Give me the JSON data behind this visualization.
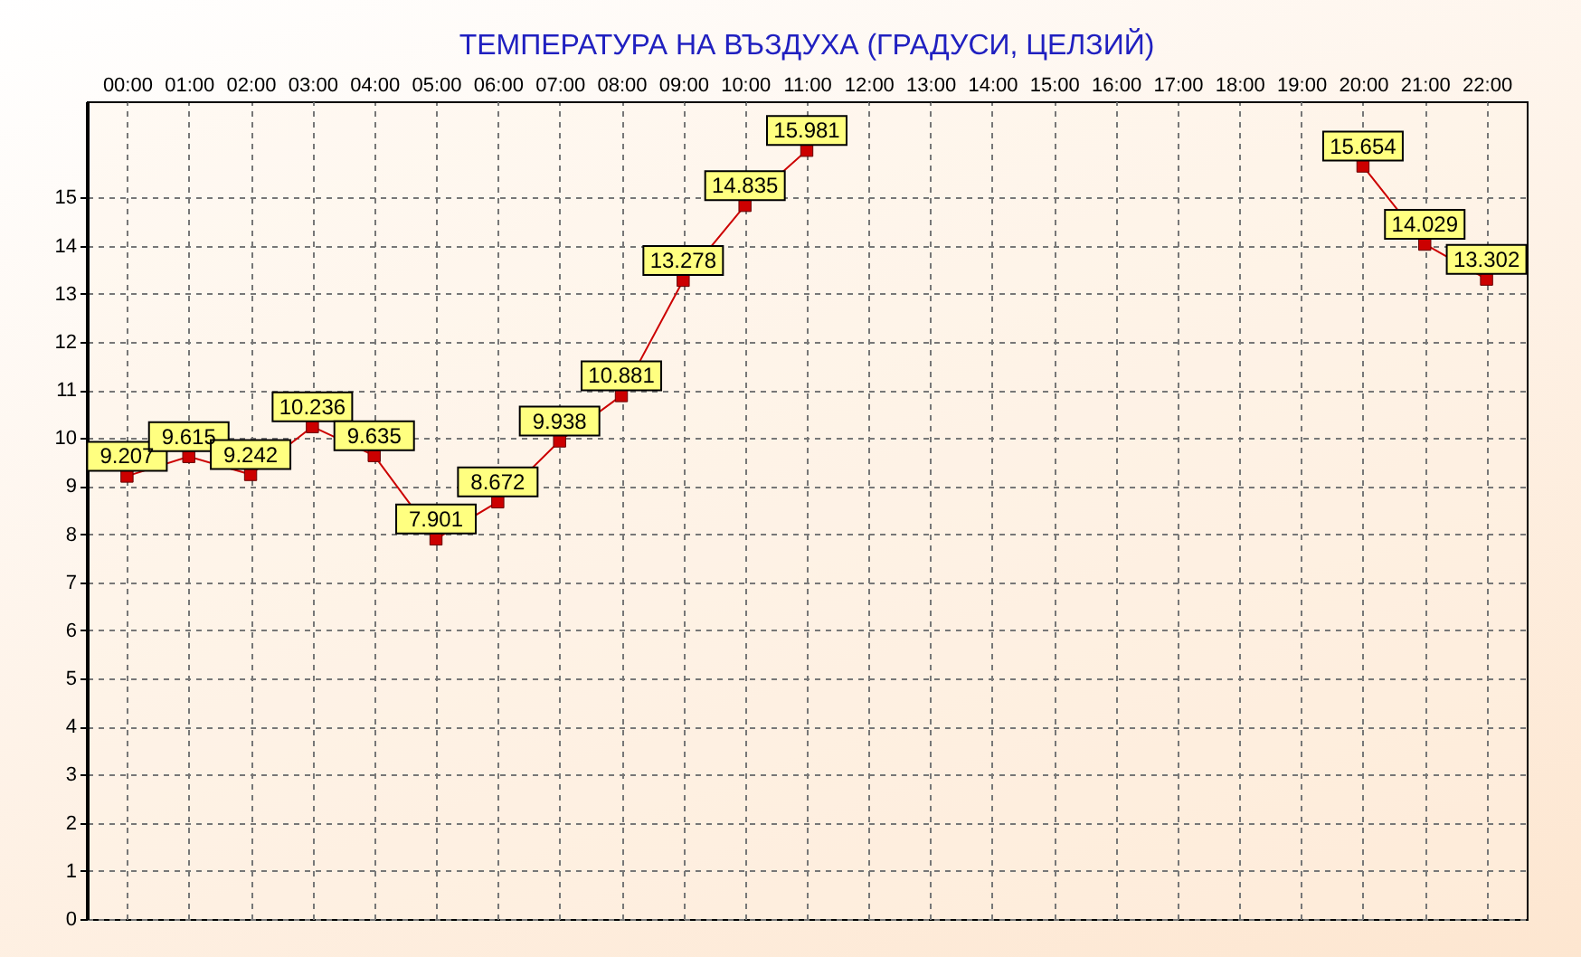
{
  "chart_data": {
    "type": "line",
    "title": "ТЕМПЕРАТУРА НА ВЪЗДУХА (ГРАДУСИ, ЦЕЛЗИЙ)",
    "categories": [
      "00:00",
      "01:00",
      "02:00",
      "03:00",
      "04:00",
      "05:00",
      "06:00",
      "07:00",
      "08:00",
      "09:00",
      "10:00",
      "11:00",
      "12:00",
      "13:00",
      "14:00",
      "15:00",
      "16:00",
      "17:00",
      "18:00",
      "19:00",
      "20:00",
      "21:00",
      "22:00"
    ],
    "series": [
      {
        "color": "#cc0000",
        "values": [
          9.207,
          9.615,
          9.242,
          10.236,
          9.635,
          7.901,
          8.672,
          9.938,
          10.881,
          13.278,
          14.835,
          15.981,
          null,
          null,
          null,
          null,
          null,
          null,
          null,
          null,
          15.654,
          14.029,
          13.302
        ]
      }
    ],
    "ylim": [
      0,
      17
    ],
    "yticks": [
      0,
      1,
      2,
      3,
      4,
      5,
      6,
      7,
      8,
      9,
      10,
      11,
      12,
      13,
      14,
      15
    ],
    "grid": true,
    "marker": "square",
    "line_style": "solid",
    "data_labels": true
  }
}
